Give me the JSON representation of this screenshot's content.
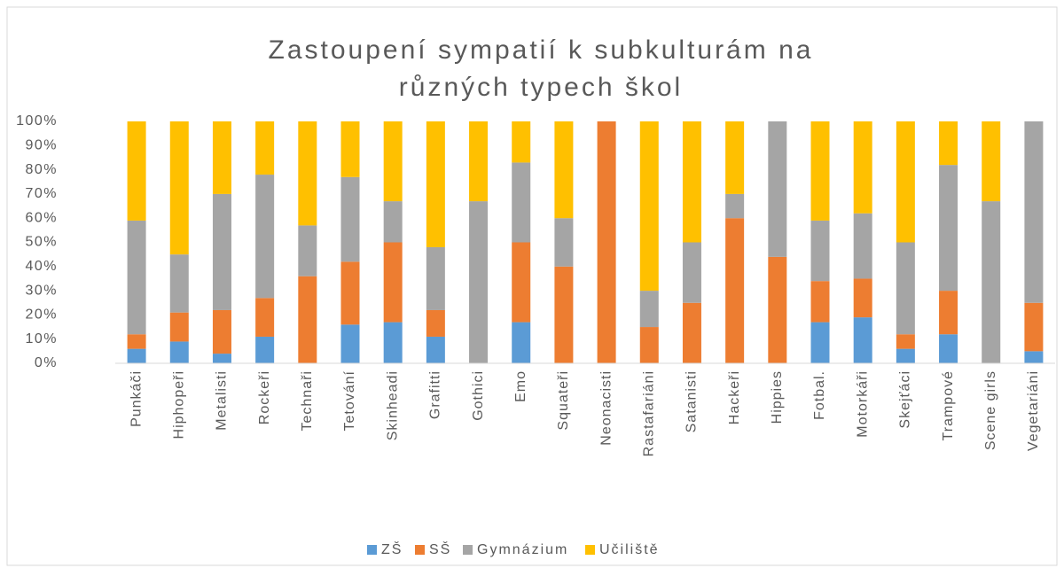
{
  "chart_data": {
    "type": "stacked_bar_percent",
    "title": [
      "Zastoupení sympatií k subkulturám na",
      "různých typech škol"
    ],
    "categories": [
      "Punkáči",
      "Hiphopeři",
      "Metalisti",
      "Rockeři",
      "Technaři",
      "Tetování",
      "Skinheadi",
      "Grafitti",
      "Gothici",
      "Emo",
      "Squateři",
      "Neonacisti",
      "Rastafariáni",
      "Satanisti",
      "Hackeři",
      "Hippies",
      "Fotbal.",
      "Motorkáři",
      "Skejťáci",
      "Trampové",
      "Scene girls",
      "Vegetariáni"
    ],
    "series": [
      {
        "name": "ZŠ",
        "color": "#5b9bd5",
        "values": [
          6,
          9,
          4,
          11,
          0,
          16,
          17,
          11,
          0,
          17,
          0,
          0,
          0,
          0,
          0,
          0,
          17,
          19,
          6,
          12,
          0,
          5
        ]
      },
      {
        "name": "SŠ",
        "color": "#ed7d31",
        "values": [
          6,
          12,
          18,
          16,
          36,
          26,
          33,
          11,
          0,
          33,
          40,
          100,
          15,
          25,
          60,
          44,
          17,
          16,
          6,
          18,
          0,
          20
        ]
      },
      {
        "name": "Gymnázium",
        "color": "#a5a5a5",
        "values": [
          47,
          24,
          48,
          51,
          21,
          35,
          17,
          26,
          67,
          33,
          20,
          0,
          15,
          25,
          10,
          56,
          25,
          27,
          38,
          52,
          67,
          75
        ]
      },
      {
        "name": "Učiliště",
        "color": "#ffc000",
        "values": [
          41,
          55,
          30,
          22,
          43,
          23,
          33,
          52,
          33,
          17,
          40,
          0,
          70,
          50,
          30,
          0,
          41,
          38,
          50,
          18,
          33,
          0
        ]
      }
    ],
    "ylim": [
      0,
      100
    ],
    "yticks": [
      {
        "value": 0,
        "label": "0%"
      },
      {
        "value": 10,
        "label": "10%"
      },
      {
        "value": 20,
        "label": "20%"
      },
      {
        "value": 30,
        "label": "30%"
      },
      {
        "value": 40,
        "label": "40%"
      },
      {
        "value": 50,
        "label": "50%"
      },
      {
        "value": 60,
        "label": "60%"
      },
      {
        "value": 70,
        "label": "70%"
      },
      {
        "value": 80,
        "label": "80%"
      },
      {
        "value": 90,
        "label": "90%"
      },
      {
        "value": 100,
        "label": "100%"
      }
    ],
    "grid": false,
    "legend": "bottom"
  }
}
